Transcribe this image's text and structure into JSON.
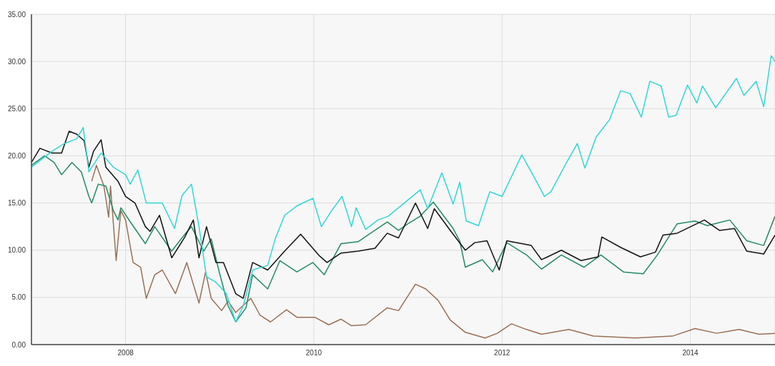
{
  "chart_data": {
    "type": "line",
    "xlim": [
      2007,
      2014.9
    ],
    "xticks": [
      2008,
      2010,
      2012,
      2014
    ],
    "ylim": [
      0,
      35
    ],
    "yticks": [
      {
        "value": 0,
        "label": "0.00"
      },
      {
        "value": 5,
        "label": "5.00"
      },
      {
        "value": 10,
        "label": "10.00"
      },
      {
        "value": 15,
        "label": "15.00"
      },
      {
        "value": 20,
        "label": "20.00"
      },
      {
        "value": 25,
        "label": "25.00"
      },
      {
        "value": 30,
        "label": "30.00"
      },
      {
        "value": 35,
        "label": "35.00"
      }
    ],
    "grid": true,
    "marker": "none",
    "line_style": "solid",
    "series": [
      {
        "color": "#9a6f55",
        "x": [
          2007.64,
          2007.69,
          2007.77,
          2007.82,
          2007.84,
          2007.9,
          2007.95,
          2008,
          2008.08,
          2008.16,
          2008.22,
          2008.31,
          2008.39,
          2008.53,
          2008.65,
          2008.78,
          2008.85,
          2008.91,
          2009.02,
          2009.09,
          2009.17,
          2009.33,
          2009.43,
          2009.54,
          2009.71,
          2009.82,
          2010.01,
          2010.16,
          2010.29,
          2010.4,
          2010.55,
          2010.78,
          2010.9,
          2011.08,
          2011.19,
          2011.32,
          2011.45,
          2011.61,
          2011.82,
          2011.95,
          2012.1,
          2012.26,
          2012.42,
          2012.71,
          2012.97,
          2013.42,
          2013.81,
          2014.05,
          2014.28,
          2014.52,
          2014.73,
          2014.9
        ],
        "values": [
          17.3,
          19,
          16.8,
          13.5,
          16.8,
          8.9,
          14.2,
          13.2,
          8.7,
          8.2,
          4.9,
          7.4,
          7.9,
          5.4,
          8.7,
          4.4,
          7.7,
          4.9,
          3.6,
          4.6,
          3.4,
          4.9,
          3.1,
          2.4,
          3.7,
          2.9,
          2.9,
          2.1,
          2.7,
          2,
          2.1,
          3.9,
          3.6,
          6.4,
          5.9,
          4.7,
          2.6,
          1.3,
          0.7,
          1.2,
          2.2,
          1.6,
          1.1,
          1.6,
          0.9,
          0.7,
          0.9,
          1.7,
          1.2,
          1.6,
          1.1,
          1.2
        ]
      },
      {
        "color": "#238a63",
        "x": [
          2007,
          2007.14,
          2007.24,
          2007.32,
          2007.43,
          2007.53,
          2007.61,
          2007.64,
          2007.71,
          2007.79,
          2007.87,
          2007.92,
          2007.95,
          2008.05,
          2008.21,
          2008.31,
          2008.49,
          2008.63,
          2008.7,
          2008.83,
          2008.91,
          2008.99,
          2009.09,
          2009.17,
          2009.28,
          2009.35,
          2009.51,
          2009.64,
          2009.82,
          2009.99,
          2010.11,
          2010.29,
          2010.47,
          2010.78,
          2010.9,
          2011,
          2011.13,
          2011.27,
          2011.48,
          2011.55,
          2011.61,
          2011.79,
          2011.9,
          2012.05,
          2012.26,
          2012.42,
          2012.63,
          2012.87,
          2013.05,
          2013.29,
          2013.5,
          2013.65,
          2013.86,
          2014.05,
          2014.18,
          2014.42,
          2014.6,
          2014.78,
          2014.9
        ],
        "values": [
          19,
          20,
          19.3,
          18,
          19.3,
          18.3,
          15.7,
          15,
          17,
          16.8,
          14.2,
          13.2,
          14.5,
          13,
          10.7,
          12.5,
          9.9,
          11.7,
          12.5,
          9.9,
          11.2,
          7.9,
          4.1,
          2.4,
          3.9,
          7.4,
          5.9,
          8.9,
          7.7,
          8.7,
          7.4,
          10.7,
          10.9,
          13,
          12.1,
          12.8,
          13.6,
          15.1,
          12.3,
          11,
          8.2,
          9,
          7.7,
          10.8,
          9.5,
          8,
          9.5,
          8.2,
          9.5,
          7.7,
          7.5,
          9.5,
          12.8,
          13.1,
          12.6,
          13.2,
          11,
          10.5,
          13.6
        ]
      },
      {
        "color": "#111111",
        "x": [
          2007,
          2007.09,
          2007.22,
          2007.32,
          2007.4,
          2007.48,
          2007.56,
          2007.61,
          2007.66,
          2007.74,
          2007.79,
          2007.92,
          2008,
          2008.1,
          2008.21,
          2008.26,
          2008.36,
          2008.49,
          2008.63,
          2008.72,
          2008.78,
          2008.86,
          2008.96,
          2009.04,
          2009.17,
          2009.25,
          2009.35,
          2009.51,
          2009.69,
          2009.86,
          2010.06,
          2010.14,
          2010.29,
          2010.47,
          2010.65,
          2010.78,
          2010.9,
          2011.08,
          2011.21,
          2011.28,
          2011.45,
          2011.61,
          2011.71,
          2011.84,
          2011.97,
          2012.05,
          2012.31,
          2012.42,
          2012.63,
          2012.84,
          2013.02,
          2013.06,
          2013.26,
          2013.47,
          2013.63,
          2013.71,
          2013.86,
          2014.15,
          2014.31,
          2014.47,
          2014.6,
          2014.78,
          2014.9
        ],
        "values": [
          19.3,
          20.8,
          20.3,
          20.3,
          22.6,
          22.3,
          21.6,
          18.8,
          20.5,
          21.7,
          18.8,
          17.3,
          15.7,
          15,
          12.5,
          12,
          13.7,
          9.2,
          11.4,
          13.2,
          9.2,
          12.5,
          8.7,
          8.7,
          5.4,
          4.9,
          8.7,
          7.9,
          9.9,
          11.7,
          9.4,
          8.7,
          9.7,
          9.9,
          10.2,
          11.8,
          11.3,
          15,
          12.3,
          14.4,
          12.1,
          10,
          10.8,
          11,
          7.9,
          11,
          10.5,
          9,
          10,
          8.9,
          9.3,
          11.4,
          10.3,
          9.3,
          9.8,
          11.6,
          11.8,
          13.2,
          12.1,
          12.3,
          9.9,
          9.6,
          11.6
        ]
      },
      {
        "color": "#33d6d6",
        "x": [
          2007,
          2007.22,
          2007.35,
          2007.48,
          2007.55,
          2007.61,
          2007.74,
          2007.87,
          2008,
          2008.05,
          2008.13,
          2008.22,
          2008.39,
          2008.52,
          2008.6,
          2008.7,
          2008.78,
          2008.86,
          2008.96,
          2009.07,
          2009.17,
          2009.25,
          2009.35,
          2009.51,
          2009.59,
          2009.69,
          2009.82,
          2009.99,
          2010.08,
          2010.19,
          2010.3,
          2010.4,
          2010.45,
          2010.55,
          2010.68,
          2010.79,
          2011.13,
          2011.21,
          2011.36,
          2011.48,
          2011.55,
          2011.62,
          2011.75,
          2011.87,
          2012,
          2012.21,
          2012.37,
          2012.45,
          2012.52,
          2012.68,
          2012.8,
          2012.88,
          2013,
          2013.14,
          2013.26,
          2013.36,
          2013.48,
          2013.57,
          2013.69,
          2013.77,
          2013.85,
          2013.97,
          2014.07,
          2014.13,
          2014.27,
          2014.49,
          2014.57,
          2014.7,
          2014.78,
          2014.86,
          2014.9
        ],
        "values": [
          18.8,
          20.5,
          21.3,
          21.8,
          23,
          18.3,
          20.3,
          18.8,
          18,
          17,
          18.5,
          15,
          15,
          12.3,
          15.8,
          17,
          12.5,
          7.2,
          6.6,
          5.4,
          2.4,
          4.1,
          7.9,
          8.4,
          11.2,
          13.7,
          14.7,
          15.5,
          12.5,
          14.2,
          15.7,
          12.5,
          14.5,
          12.2,
          13.2,
          13.6,
          16.4,
          14.4,
          18.2,
          14.9,
          17.2,
          13.1,
          12.6,
          16.2,
          15.7,
          20.1,
          17.2,
          15.7,
          16.2,
          19.2,
          21.3,
          18.7,
          22,
          23.8,
          26.9,
          26.6,
          24.1,
          27.9,
          27.4,
          24.1,
          24.3,
          27.5,
          25.6,
          27.4,
          25.1,
          28.2,
          26.4,
          27.9,
          25.2,
          30.6,
          30
        ]
      }
    ]
  }
}
